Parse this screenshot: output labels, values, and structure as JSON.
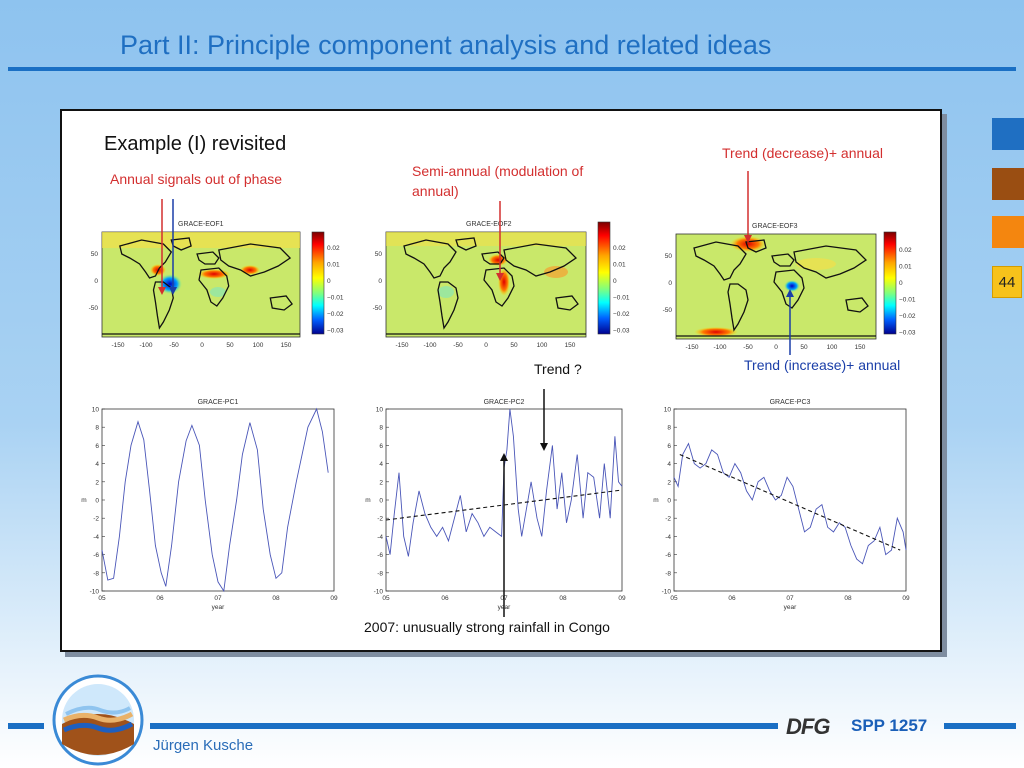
{
  "slide": {
    "title": "Part II: Principle component analysis and related ideas",
    "page_number": "44",
    "author": "Jürgen Kusche",
    "program": "SPP 1257",
    "logo_text": "DFG"
  },
  "content": {
    "heading": "Example (I) revisited",
    "annotations": {
      "annual_out_of_phase": "Annual signals out of phase",
      "semi_annual_line1": "Semi-annual (modulation of",
      "semi_annual_line2": "annual)",
      "trend_decrease": "Trend (decrease)+ annual",
      "trend_question": "Trend ?",
      "trend_increase": "Trend (increase)+ annual",
      "rainfall_note": "2007: unusually strong rainfall in Congo"
    },
    "maps": [
      {
        "title": "GRACE-EOF1"
      },
      {
        "title": "GRACE-EOF2"
      },
      {
        "title": "GRACE-EOF3"
      }
    ],
    "map_axes": {
      "y_ticks": [
        "50",
        "0",
        "-50"
      ],
      "x_ticks": [
        "-150",
        "-100",
        "-50",
        "0",
        "50",
        "100",
        "150"
      ],
      "colorbar_ticks": [
        "0.02",
        "0.01",
        "0",
        "−0.01",
        "−0.02",
        "−0.03"
      ]
    },
    "plot_axes": {
      "y_ticks": [
        "10",
        "8",
        "6",
        "4",
        "2",
        "0",
        "-2",
        "-4",
        "-6",
        "-8",
        "-10"
      ],
      "x_ticks": [
        "05",
        "06",
        "07",
        "08",
        "09"
      ],
      "xlabel": "year",
      "ylabel": "m"
    }
  },
  "chart_data": [
    {
      "type": "line",
      "title": "GRACE-PC1",
      "xlabel": "year",
      "ylabel": "m",
      "xlim": [
        2005,
        2009
      ],
      "ylim": [
        -10,
        10
      ],
      "series": [
        {
          "values": [
            [
              2005.0,
              -5.5
            ],
            [
              2005.1,
              -8.8
            ],
            [
              2005.2,
              -8.6
            ],
            [
              2005.3,
              -4
            ],
            [
              2005.4,
              2
            ],
            [
              2005.5,
              6
            ],
            [
              2005.62,
              8.6
            ],
            [
              2005.72,
              6.6
            ],
            [
              2005.82,
              1
            ],
            [
              2005.92,
              -5
            ],
            [
              2006.02,
              -8
            ],
            [
              2006.1,
              -9.5
            ],
            [
              2006.2,
              -5
            ],
            [
              2006.32,
              2
            ],
            [
              2006.45,
              6.5
            ],
            [
              2006.55,
              8.2
            ],
            [
              2006.68,
              6
            ],
            [
              2006.78,
              0
            ],
            [
              2006.9,
              -6
            ],
            [
              2007.0,
              -9
            ],
            [
              2007.1,
              -10
            ],
            [
              2007.2,
              -5
            ],
            [
              2007.32,
              0
            ],
            [
              2007.42,
              5
            ],
            [
              2007.55,
              8.5
            ],
            [
              2007.68,
              5.5
            ],
            [
              2007.78,
              -1
            ],
            [
              2007.9,
              -6
            ],
            [
              2008.0,
              -8.6
            ],
            [
              2008.1,
              -8
            ],
            [
              2008.2,
              -3
            ],
            [
              2008.35,
              2
            ],
            [
              2008.45,
              5
            ],
            [
              2008.55,
              8
            ],
            [
              2008.7,
              10
            ],
            [
              2008.8,
              7.5
            ],
            [
              2008.9,
              3
            ]
          ]
        }
      ]
    },
    {
      "type": "line",
      "title": "GRACE-PC2",
      "xlabel": "year",
      "ylabel": "m",
      "xlim": [
        2005,
        2009
      ],
      "ylim": [
        -10,
        10
      ],
      "series": [
        {
          "values": [
            [
              2005.0,
              -4
            ],
            [
              2005.07,
              -6
            ],
            [
              2005.14,
              -1.5
            ],
            [
              2005.22,
              3
            ],
            [
              2005.3,
              -4
            ],
            [
              2005.38,
              -6.2
            ],
            [
              2005.46,
              -2.5
            ],
            [
              2005.56,
              1
            ],
            [
              2005.66,
              -1.5
            ],
            [
              2005.76,
              -3
            ],
            [
              2005.86,
              -4
            ],
            [
              2005.96,
              -3
            ],
            [
              2006.06,
              -4.5
            ],
            [
              2006.16,
              -2
            ],
            [
              2006.26,
              0.5
            ],
            [
              2006.36,
              -3.5
            ],
            [
              2006.46,
              -1.5
            ],
            [
              2006.56,
              -2.5
            ],
            [
              2006.66,
              -4
            ],
            [
              2006.76,
              -3
            ],
            [
              2006.86,
              -3.5
            ],
            [
              2006.96,
              -4
            ],
            [
              2007.0,
              3.5
            ],
            [
              2007.05,
              5.5
            ],
            [
              2007.1,
              10
            ],
            [
              2007.16,
              7
            ],
            [
              2007.24,
              -1
            ],
            [
              2007.3,
              -4
            ],
            [
              2007.38,
              -1
            ],
            [
              2007.46,
              2
            ],
            [
              2007.56,
              -2
            ],
            [
              2007.64,
              -4
            ],
            [
              2007.72,
              1
            ],
            [
              2007.82,
              6
            ],
            [
              2007.9,
              -1
            ],
            [
              2007.98,
              3
            ],
            [
              2008.06,
              -2.5
            ],
            [
              2008.14,
              0
            ],
            [
              2008.24,
              5
            ],
            [
              2008.34,
              -2
            ],
            [
              2008.42,
              3
            ],
            [
              2008.52,
              2.5
            ],
            [
              2008.62,
              -2
            ],
            [
              2008.7,
              4
            ],
            [
              2008.8,
              -2
            ],
            [
              2008.88,
              7
            ],
            [
              2008.94,
              2
            ],
            [
              2009.0,
              1.5
            ]
          ]
        },
        {
          "values": [
            [
              2005.0,
              -2.2
            ],
            [
              2009.0,
              1.1
            ]
          ]
        }
      ]
    },
    {
      "type": "line",
      "title": "GRACE-PC3",
      "xlabel": "year",
      "ylabel": "m",
      "xlim": [
        2005,
        2009
      ],
      "ylim": [
        -10,
        10
      ],
      "series": [
        {
          "values": [
            [
              2005.0,
              2.5
            ],
            [
              2005.07,
              1.5
            ],
            [
              2005.15,
              5
            ],
            [
              2005.25,
              6.2
            ],
            [
              2005.35,
              4
            ],
            [
              2005.45,
              3.5
            ],
            [
              2005.55,
              4
            ],
            [
              2005.65,
              5.5
            ],
            [
              2005.75,
              5
            ],
            [
              2005.85,
              3
            ],
            [
              2005.95,
              2.5
            ],
            [
              2006.05,
              4
            ],
            [
              2006.15,
              3
            ],
            [
              2006.25,
              1
            ],
            [
              2006.35,
              0
            ],
            [
              2006.45,
              2
            ],
            [
              2006.55,
              2.5
            ],
            [
              2006.65,
              1
            ],
            [
              2006.75,
              0
            ],
            [
              2006.85,
              0.5
            ],
            [
              2006.95,
              2.5
            ],
            [
              2007.05,
              1.5
            ],
            [
              2007.15,
              -1
            ],
            [
              2007.25,
              -3.5
            ],
            [
              2007.35,
              -3
            ],
            [
              2007.45,
              -1
            ],
            [
              2007.55,
              -0.5
            ],
            [
              2007.65,
              -3
            ],
            [
              2007.75,
              -3.5
            ],
            [
              2007.85,
              -2.5
            ],
            [
              2007.95,
              -3
            ],
            [
              2008.05,
              -5
            ],
            [
              2008.15,
              -6.5
            ],
            [
              2008.25,
              -7
            ],
            [
              2008.35,
              -5
            ],
            [
              2008.45,
              -4.5
            ],
            [
              2008.55,
              -3
            ],
            [
              2008.65,
              -6
            ],
            [
              2008.75,
              -5.5
            ],
            [
              2008.85,
              -2
            ],
            [
              2008.95,
              -3.5
            ],
            [
              2009.0,
              -5.5
            ]
          ]
        },
        {
          "values": [
            [
              2005.1,
              5
            ],
            [
              2008.9,
              -5.5
            ]
          ]
        }
      ]
    }
  ]
}
